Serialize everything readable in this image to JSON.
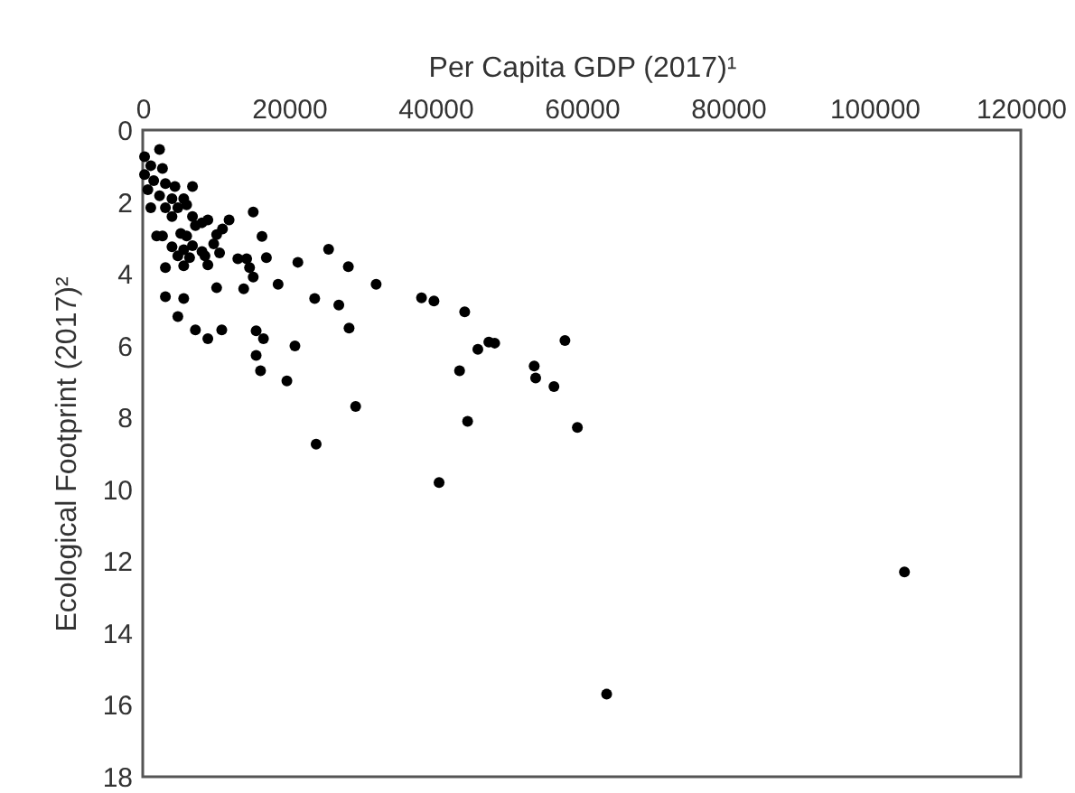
{
  "chart_data": {
    "type": "scatter",
    "xlabel": "Per Capita GDP (2017)¹",
    "ylabel": "Ecological Footprint (2017)²",
    "xlim": [
      0,
      120000
    ],
    "xticks": [
      0,
      20000,
      40000,
      60000,
      80000,
      100000,
      120000
    ],
    "ylim": [
      18,
      0
    ],
    "yticks": [
      0,
      2,
      4,
      6,
      8,
      10,
      12,
      14,
      16,
      18
    ],
    "grid": false,
    "marker": "circle",
    "series": [
      {
        "color": "#000000",
        "x": [
          2300,
          250,
          1100,
          250,
          2700,
          1500,
          3100,
          700,
          4400,
          6800,
          2300,
          4000,
          5600,
          1100,
          3100,
          4800,
          6000,
          4000,
          6800,
          8900,
          15100,
          11800,
          7200,
          8100,
          1900,
          2700,
          5200,
          6000,
          10100,
          10900,
          16300,
          4000,
          5600,
          6800,
          8100,
          9700,
          10500,
          25400,
          4800,
          6400,
          8500,
          13000,
          14200,
          16900,
          21200,
          3100,
          5600,
          8900,
          14600,
          28100,
          15100,
          18500,
          10100,
          13800,
          31900,
          3100,
          5600,
          23500,
          26800,
          38100,
          39800,
          4800,
          28200,
          44000,
          7200,
          8900,
          10800,
          15500,
          16500,
          15500,
          20800,
          16100,
          19700,
          43300,
          29100,
          44400,
          23700,
          40500,
          45800,
          47300,
          48100,
          57700,
          53500,
          53700,
          56200,
          59400,
          104100,
          63400
        ],
        "values": [
          0.54,
          0.74,
          0.99,
          1.24,
          1.07,
          1.41,
          1.49,
          1.66,
          1.57,
          1.57,
          1.83,
          1.91,
          1.91,
          2.16,
          2.16,
          2.16,
          2.08,
          2.41,
          2.41,
          2.5,
          2.28,
          2.5,
          2.66,
          2.58,
          2.95,
          2.95,
          2.88,
          2.95,
          2.91,
          2.75,
          2.96,
          3.25,
          3.33,
          3.22,
          3.38,
          3.17,
          3.42,
          3.32,
          3.5,
          3.55,
          3.5,
          3.58,
          3.58,
          3.55,
          3.68,
          3.83,
          3.78,
          3.75,
          3.83,
          3.8,
          4.09,
          4.29,
          4.39,
          4.42,
          4.29,
          4.64,
          4.69,
          4.69,
          4.87,
          4.67,
          4.76,
          5.19,
          5.51,
          5.06,
          5.56,
          5.81,
          5.56,
          5.59,
          5.81,
          6.27,
          6.01,
          6.7,
          6.98,
          6.7,
          7.69,
          8.11,
          8.74,
          9.81,
          6.1,
          5.9,
          5.93,
          5.86,
          6.57,
          6.9,
          7.14,
          8.28,
          12.3,
          15.7
        ]
      }
    ]
  }
}
